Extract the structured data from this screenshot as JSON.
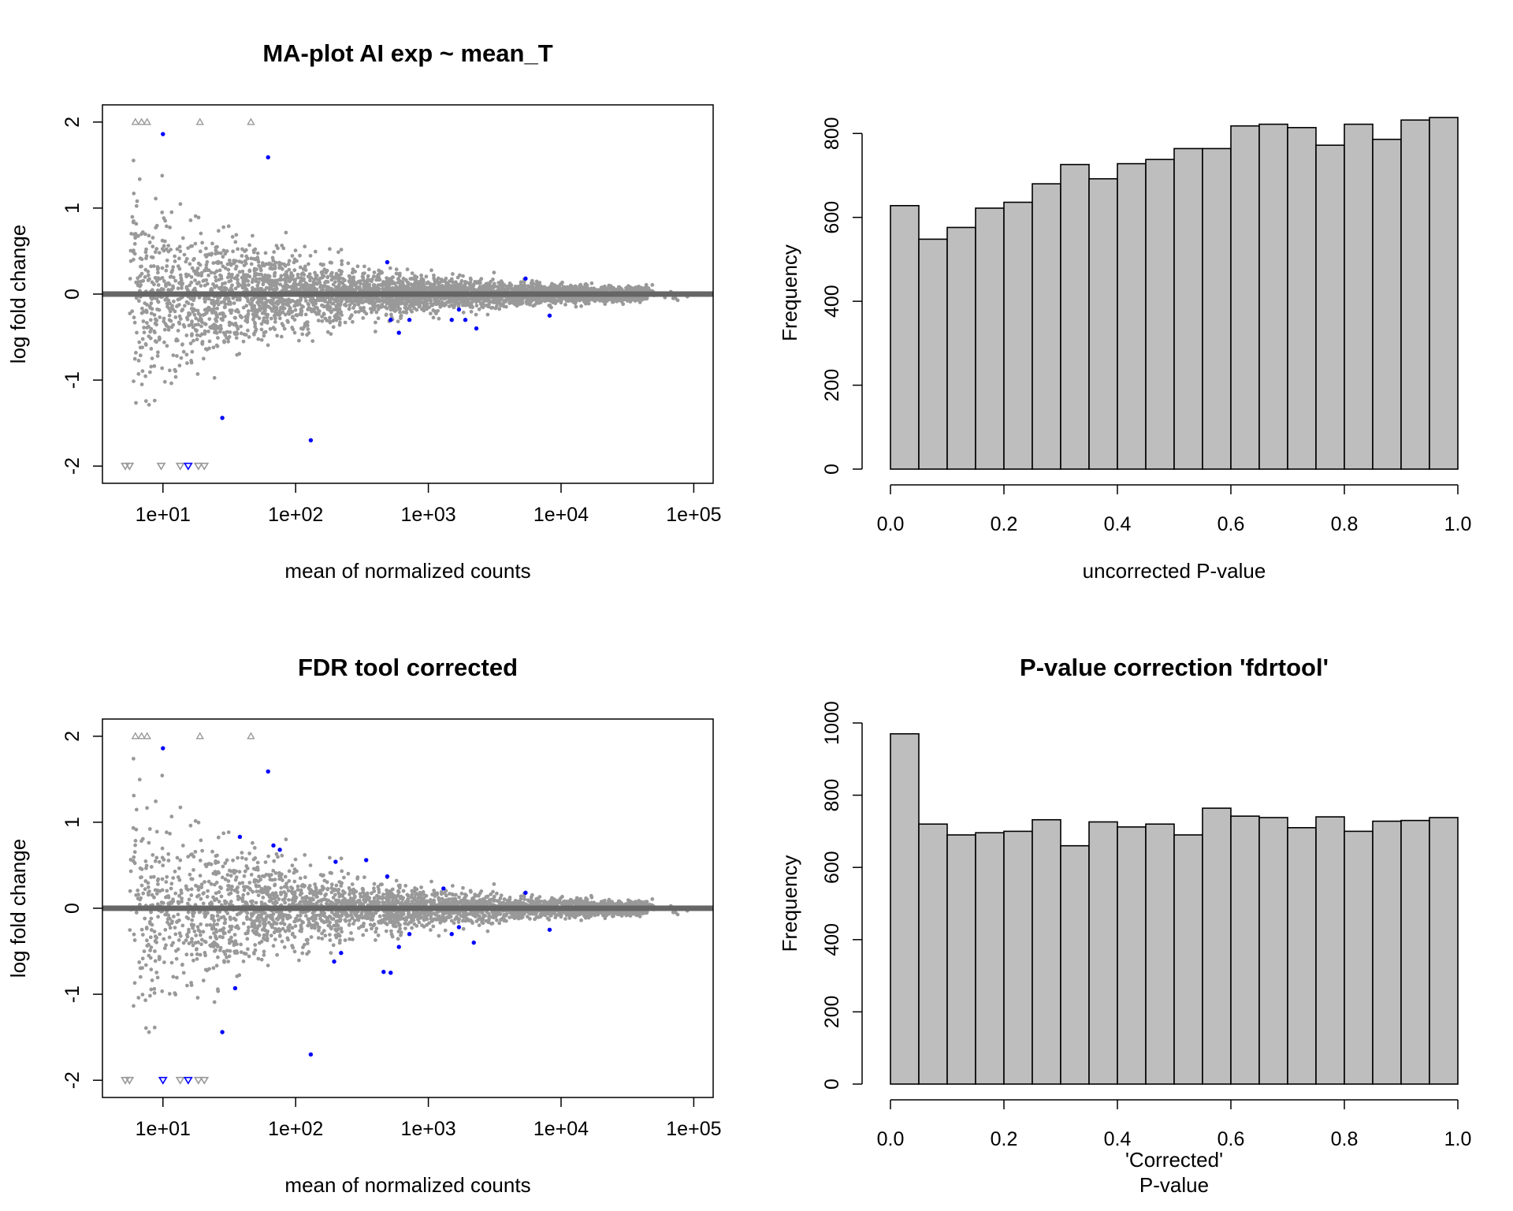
{
  "chart_data": [
    {
      "type": "scatter",
      "id": "ma1",
      "title": "MA-plot AI exp ~ mean_T",
      "xlabel": "mean of normalized counts",
      "ylabel": "log fold change",
      "x_scale": "log10",
      "xlim": [
        3.5,
        140000
      ],
      "ylim": [
        -2.2,
        2.2
      ],
      "x_ticks": [
        10,
        100,
        1000,
        10000,
        100000
      ],
      "x_tick_labels": [
        "1e+01",
        "1e+02",
        "1e+03",
        "1e+04",
        "1e+05"
      ],
      "y_ticks": [
        -2,
        -1,
        0,
        1,
        2
      ],
      "y_tick_labels": [
        "-2",
        "-1",
        "0",
        "1",
        "2"
      ],
      "reference_line": 0,
      "colors": {
        "non_significant": "#999999",
        "significant": "#0000ff",
        "reference_line": "#666666"
      },
      "series": [
        {
          "name": "",
          "color": "#0000ff",
          "points": [
            [
              10,
              1.86
            ],
            [
              62,
              1.59
            ],
            [
              28,
              -1.44
            ],
            [
              130,
              -1.7
            ],
            [
              490,
              0.37
            ],
            [
              520,
              -0.3
            ],
            [
              600,
              -0.45
            ],
            [
              720,
              -0.3
            ],
            [
              1500,
              -0.3
            ],
            [
              1700,
              -0.18
            ],
            [
              1900,
              -0.3
            ],
            [
              2300,
              -0.4
            ],
            [
              5400,
              0.18
            ],
            [
              8200,
              -0.25
            ]
          ]
        },
        {
          "name": "",
          "color": "#999999",
          "marker": "triangle-up",
          "points": [
            [
              6.2,
              2.0
            ],
            [
              6.9,
              2.0
            ],
            [
              7.6,
              2.0
            ],
            [
              19,
              2.0
            ],
            [
              46,
              2.0
            ]
          ]
        },
        {
          "name": "",
          "color": "#999999",
          "marker": "triangle-down",
          "points": [
            [
              5.2,
              -2.0
            ],
            [
              5.6,
              -2.0
            ],
            [
              9.7,
              -2.0
            ],
            [
              13.5,
              -2.0
            ],
            [
              18.5,
              -2.0
            ],
            [
              20.5,
              -2.0
            ]
          ]
        },
        {
          "name": "",
          "color": "#0000ff",
          "marker": "triangle-down",
          "points": [
            [
              15.5,
              -2.0
            ]
          ]
        }
      ]
    },
    {
      "type": "bar",
      "id": "hist1",
      "title": "",
      "xlabel": "uncorrected P-value",
      "ylabel": "Frequency",
      "xlim": [
        0,
        1
      ],
      "ylim": [
        0,
        840
      ],
      "bin_width": 0.05,
      "x_ticks": [
        0,
        0.2,
        0.4,
        0.6,
        0.8,
        1.0
      ],
      "x_tick_labels": [
        "0.0",
        "0.2",
        "0.4",
        "0.6",
        "0.8",
        "1.0"
      ],
      "y_ticks": [
        0,
        200,
        400,
        600,
        800
      ],
      "y_tick_labels": [
        "0",
        "200",
        "400",
        "600",
        "800"
      ],
      "colors": {
        "bar_fill": "#bebebe",
        "bar_border": "#000000"
      },
      "values": [
        628,
        548,
        576,
        622,
        636,
        680,
        726,
        692,
        728,
        738,
        764,
        764,
        818,
        822,
        814,
        772,
        822,
        786,
        832,
        838
      ]
    },
    {
      "type": "scatter",
      "id": "ma2",
      "title": "FDR tool corrected",
      "xlabel": "mean of normalized counts",
      "ylabel": "log fold change",
      "x_scale": "log10",
      "xlim": [
        3.5,
        140000
      ],
      "ylim": [
        -2.2,
        2.2
      ],
      "x_ticks": [
        10,
        100,
        1000,
        10000,
        100000
      ],
      "x_tick_labels": [
        "1e+01",
        "1e+02",
        "1e+03",
        "1e+04",
        "1e+05"
      ],
      "y_ticks": [
        -2,
        -1,
        0,
        1,
        2
      ],
      "y_tick_labels": [
        "-2",
        "-1",
        "0",
        "1",
        "2"
      ],
      "reference_line": 0,
      "colors": {
        "non_significant": "#999999",
        "significant": "#0000ff",
        "reference_line": "#666666"
      },
      "series": [
        {
          "name": "",
          "color": "#0000ff",
          "points": [
            [
              10,
              1.86
            ],
            [
              62,
              1.59
            ],
            [
              38,
              0.83
            ],
            [
              68,
              0.73
            ],
            [
              76,
              0.68
            ],
            [
              200,
              0.54
            ],
            [
              340,
              0.56
            ],
            [
              28,
              -1.44
            ],
            [
              130,
              -1.7
            ],
            [
              35,
              -0.93
            ],
            [
              195,
              -0.62
            ],
            [
              220,
              -0.52
            ],
            [
              460,
              -0.74
            ],
            [
              520,
              -0.75
            ],
            [
              490,
              0.37
            ],
            [
              1500,
              -0.3
            ],
            [
              1700,
              -0.22
            ],
            [
              2200,
              -0.4
            ],
            [
              1300,
              0.23
            ],
            [
              5400,
              0.18
            ],
            [
              8200,
              -0.25
            ],
            [
              600,
              -0.45
            ],
            [
              720,
              -0.3
            ]
          ]
        },
        {
          "name": "",
          "color": "#999999",
          "marker": "triangle-up",
          "points": [
            [
              6.2,
              2.0
            ],
            [
              6.9,
              2.0
            ],
            [
              7.6,
              2.0
            ],
            [
              19,
              2.0
            ],
            [
              46,
              2.0
            ]
          ]
        },
        {
          "name": "",
          "color": "#999999",
          "marker": "triangle-down",
          "points": [
            [
              5.2,
              -2.0
            ],
            [
              5.6,
              -2.0
            ],
            [
              13.5,
              -2.0
            ],
            [
              18.5,
              -2.0
            ],
            [
              20.5,
              -2.0
            ]
          ]
        },
        {
          "name": "",
          "color": "#0000ff",
          "marker": "triangle-down",
          "points": [
            [
              10,
              -2.0
            ],
            [
              15.5,
              -2.0
            ]
          ]
        }
      ]
    },
    {
      "type": "bar",
      "id": "hist2",
      "title": "P-value correction 'fdrtool'",
      "xlabel": "'Corrected'",
      "xlabel2": "P-value",
      "ylabel": "Frequency",
      "xlim": [
        0,
        1
      ],
      "ylim": [
        0,
        1000
      ],
      "bin_width": 0.05,
      "x_ticks": [
        0,
        0.2,
        0.4,
        0.6,
        0.8,
        1.0
      ],
      "x_tick_labels": [
        "0.0",
        "0.2",
        "0.4",
        "0.6",
        "0.8",
        "1.0"
      ],
      "y_ticks": [
        0,
        200,
        400,
        600,
        800,
        1000
      ],
      "y_tick_labels": [
        "0",
        "200",
        "400",
        "600",
        "800",
        "1000"
      ],
      "colors": {
        "bar_fill": "#bebebe",
        "bar_border": "#000000"
      },
      "values": [
        970,
        720,
        690,
        696,
        700,
        732,
        660,
        726,
        712,
        720,
        690,
        764,
        742,
        738,
        710,
        740,
        700,
        728,
        730,
        738
      ]
    }
  ]
}
